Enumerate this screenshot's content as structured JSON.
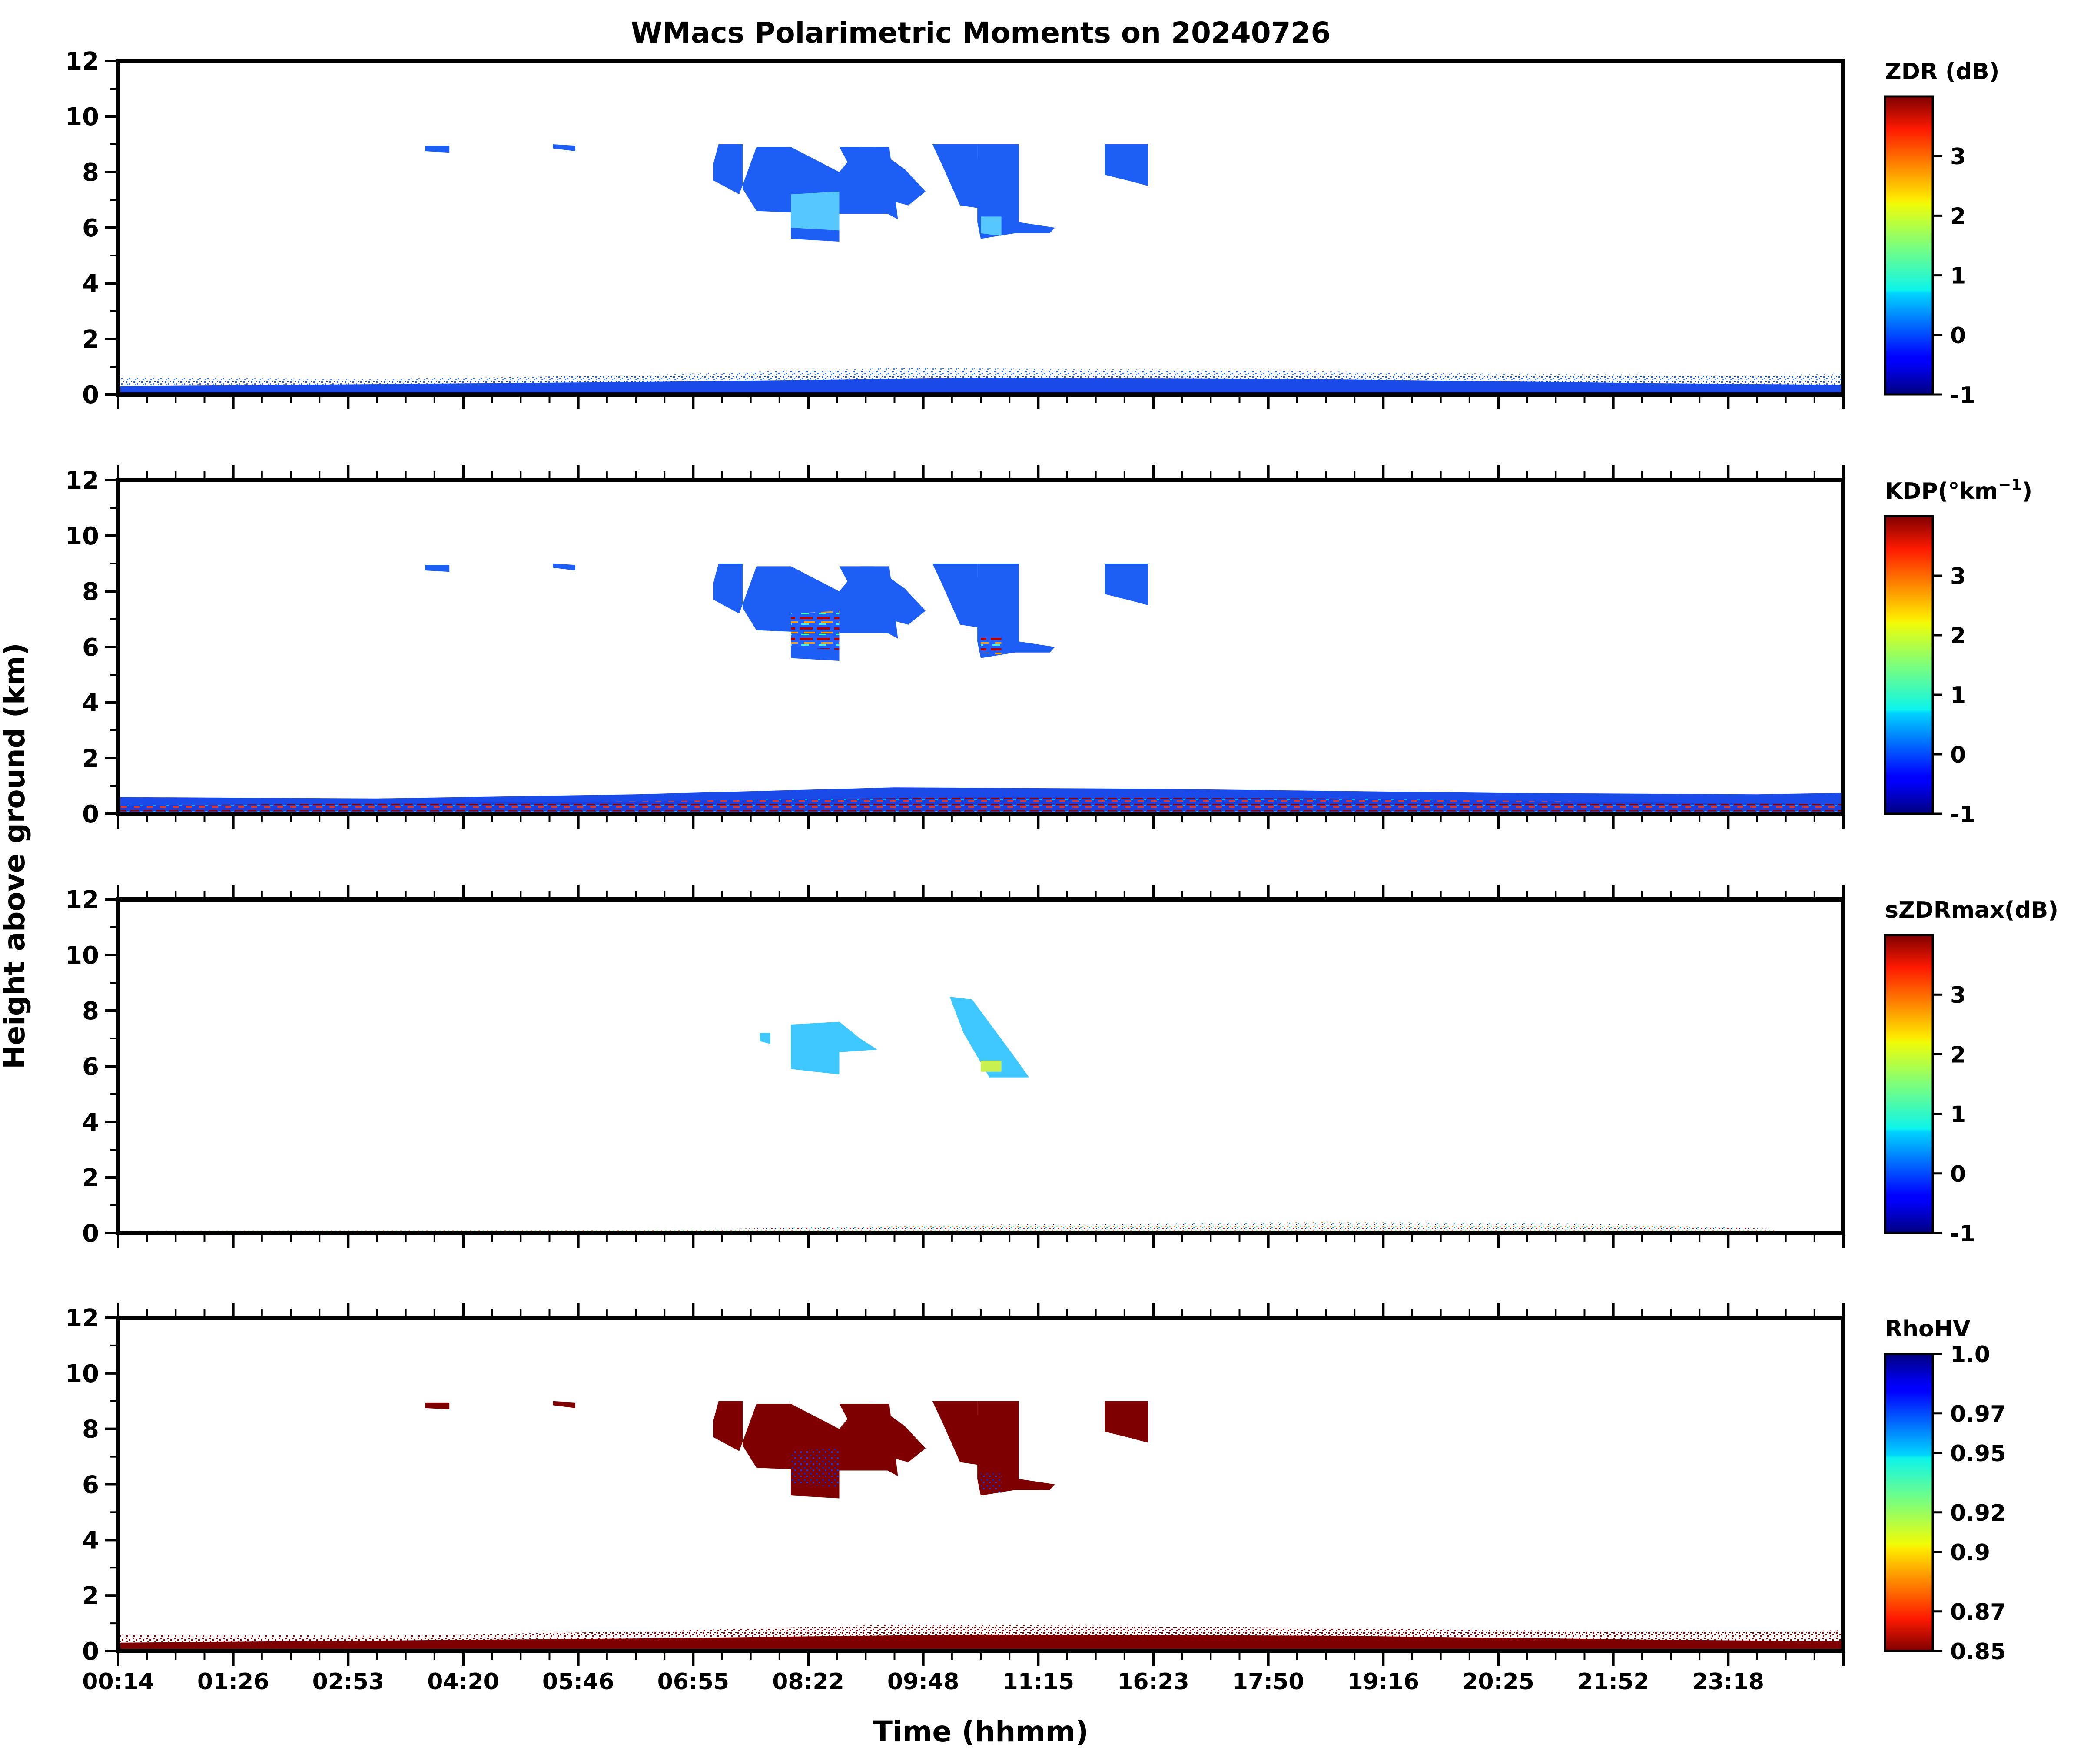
{
  "chart_data": {
    "type": "heatmap",
    "title": "WMacs Polarimetric Moments on 20240726",
    "xlabel": "Time (hhmm)",
    "ylabel": "Height above ground (km)",
    "x_tick_labels": [
      "00:14",
      "01:26",
      "02:53",
      "04:20",
      "05:46",
      "06:55",
      "08:22",
      "09:48",
      "11:15",
      "16:23",
      "17:50",
      "19:16",
      "20:25",
      "21:52",
      "23:18"
    ],
    "y_ticks": [
      0,
      2,
      4,
      6,
      8,
      10,
      12
    ],
    "ylim": [
      0,
      12
    ],
    "panels": [
      {
        "variable": "ZDR",
        "colorbar_label": "ZDR (dB)",
        "colorbar_ticks": [
          "3",
          "2",
          "1",
          "0",
          "-1"
        ],
        "colorbar_range": [
          -1,
          4
        ],
        "colormap": "jet"
      },
      {
        "variable": "KDP",
        "colorbar_label": "KDP(°km",
        "colorbar_label_sup": "−1",
        "colorbar_label_end": ")",
        "colorbar_ticks": [
          "3",
          "2",
          "1",
          "0",
          "-1"
        ],
        "colorbar_range": [
          -1,
          4
        ],
        "colormap": "jet"
      },
      {
        "variable": "sZDRmax",
        "colorbar_label": "sZDRmax(dB)",
        "colorbar_ticks": [
          "3",
          "2",
          "1",
          "0",
          "-1"
        ],
        "colorbar_range": [
          -1,
          4
        ],
        "colormap": "jet"
      },
      {
        "variable": "RhoHV",
        "colorbar_label": "RhoHV",
        "colorbar_ticks": [
          "1.0",
          "0.97",
          "0.95",
          "0.92",
          "0.9",
          "0.87",
          "0.85"
        ],
        "colorbar_range": [
          0.85,
          1.0
        ],
        "colormap": "jet_r"
      }
    ]
  }
}
